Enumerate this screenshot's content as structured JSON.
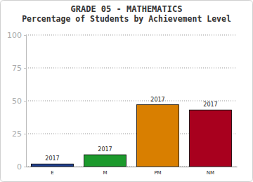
{
  "chart_data": {
    "type": "bar",
    "title": "GRADE 05 - MATHEMATICS",
    "subtitle": "Percentage of Students by Achievement Level",
    "categories": [
      "E",
      "M",
      "PM",
      "NM"
    ],
    "series": [
      {
        "name": "2017",
        "values": [
          2,
          9,
          47,
          43
        ],
        "colors": [
          "#1f3f8f",
          "#1c9a2c",
          "#d97f00",
          "#a8001e"
        ]
      }
    ],
    "ylim": [
      0,
      100
    ],
    "yticks": [
      0,
      25,
      50,
      75,
      100
    ],
    "grid": true
  }
}
